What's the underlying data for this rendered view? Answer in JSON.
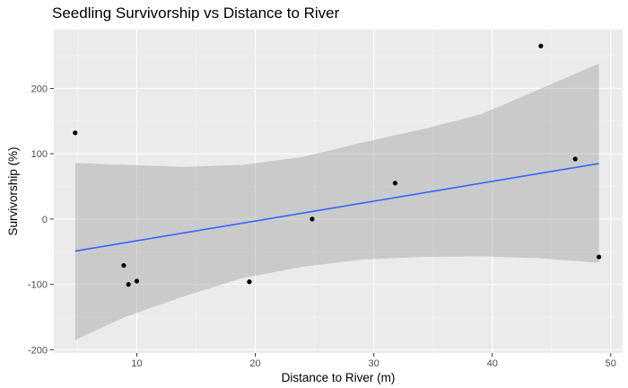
{
  "chart_data": {
    "type": "scatter",
    "title": "Seedling Survivorship vs Distance to River",
    "xlabel": "Distance to River (m)",
    "ylabel": "Survivorship (%)",
    "xlim": [
      3,
      51
    ],
    "ylim": [
      -205,
      290
    ],
    "x_ticks": [
      10,
      20,
      30,
      40,
      50
    ],
    "y_ticks": [
      -200,
      -100,
      0,
      100,
      200
    ],
    "grid": true,
    "points": [
      {
        "x": 4.8,
        "y": 132
      },
      {
        "x": 8.9,
        "y": -71
      },
      {
        "x": 9.3,
        "y": -100
      },
      {
        "x": 10.0,
        "y": -95
      },
      {
        "x": 19.5,
        "y": -96
      },
      {
        "x": 24.8,
        "y": 0
      },
      {
        "x": 31.8,
        "y": 55
      },
      {
        "x": 44.1,
        "y": 265
      },
      {
        "x": 47.0,
        "y": 92
      },
      {
        "x": 49.0,
        "y": -58
      }
    ],
    "trend_line": {
      "x": [
        4.8,
        49.0
      ],
      "y": [
        -49,
        85
      ]
    },
    "confidence_band": {
      "x": [
        4.8,
        9,
        14,
        19,
        24,
        29,
        34,
        39,
        44,
        49
      ],
      "lower": [
        -185,
        -150,
        -118,
        -90,
        -73,
        -62,
        -58,
        -57,
        -60,
        -67
      ],
      "upper": [
        86,
        83,
        80,
        83,
        95,
        117,
        137,
        160,
        199,
        238
      ]
    }
  }
}
